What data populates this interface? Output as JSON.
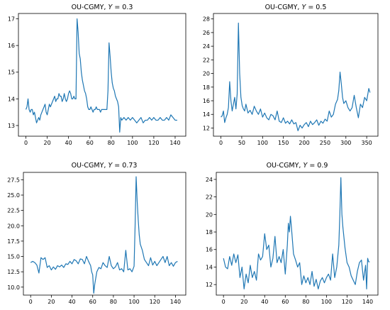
{
  "colors": {
    "line": "#1f77b4"
  },
  "chart_data": [
    {
      "type": "line",
      "title": "OU-CGMY, ",
      "title_param": "Y",
      "title_value": " = 0.3",
      "grid": false,
      "xlim": [
        -7,
        150
      ],
      "ylim": [
        12.6,
        17.2
      ],
      "xticks": [
        0,
        20,
        40,
        60,
        80,
        100,
        120,
        140
      ],
      "yticks": [
        13,
        14,
        15,
        16,
        17
      ],
      "ytick_labels": [
        "13",
        "14",
        "15",
        "16",
        "17"
      ],
      "series": [
        {
          "x": [
            0,
            1,
            2,
            3,
            4,
            5,
            6,
            7,
            8,
            9,
            10,
            11,
            12,
            13,
            14,
            15,
            16,
            17,
            18,
            19,
            20,
            21,
            22,
            23,
            24,
            25,
            26,
            27,
            28,
            29,
            30,
            31,
            32,
            33,
            34,
            35,
            36,
            37,
            38,
            39,
            40,
            41,
            42,
            43,
            44,
            45,
            46,
            47,
            48,
            49,
            50,
            51,
            52,
            53,
            54,
            55,
            56,
            57,
            58,
            59,
            60,
            61,
            62,
            63,
            64,
            65,
            66,
            67,
            68,
            69,
            70,
            71,
            72,
            73,
            74,
            75,
            76,
            77,
            78,
            79,
            80,
            81,
            82,
            83,
            84,
            85,
            86,
            87,
            88,
            89,
            90,
            92,
            94,
            96,
            98,
            100,
            102,
            104,
            106,
            108,
            110,
            112,
            114,
            116,
            118,
            120,
            122,
            124,
            126,
            128,
            130,
            132,
            134,
            136,
            138,
            140,
            142
          ],
          "y": [
            13.6,
            13.7,
            14.0,
            13.6,
            13.5,
            13.6,
            13.6,
            13.4,
            13.5,
            13.3,
            13.1,
            13.2,
            13.3,
            13.2,
            13.4,
            13.5,
            13.6,
            13.7,
            13.8,
            13.5,
            13.4,
            13.6,
            13.8,
            13.7,
            13.8,
            13.9,
            14.0,
            14.1,
            13.9,
            14.0,
            14.0,
            14.2,
            14.1,
            14.1,
            13.9,
            14.0,
            14.2,
            14.0,
            13.9,
            14.0,
            14.2,
            14.3,
            14.2,
            14.0,
            14.0,
            14.1,
            14.0,
            14.0,
            17.0,
            16.5,
            15.7,
            15.5,
            15.0,
            14.7,
            14.5,
            14.3,
            14.2,
            14.0,
            13.7,
            13.6,
            13.6,
            13.7,
            13.6,
            13.5,
            13.6,
            13.6,
            13.7,
            13.6,
            13.6,
            13.6,
            13.5,
            13.6,
            13.6,
            13.6,
            13.6,
            13.6,
            13.6,
            14.3,
            16.1,
            15.6,
            15.0,
            14.6,
            14.4,
            14.3,
            14.1,
            14.0,
            13.9,
            13.7,
            12.75,
            13.3,
            13.2,
            13.3,
            13.2,
            13.3,
            13.2,
            13.3,
            13.2,
            13.1,
            13.2,
            13.3,
            13.1,
            13.2,
            13.2,
            13.3,
            13.2,
            13.3,
            13.2,
            13.2,
            13.3,
            13.2,
            13.2,
            13.3,
            13.2,
            13.4,
            13.3,
            13.2,
            13.2
          ]
        }
      ]
    },
    {
      "type": "line",
      "title": "OU-CGMY, ",
      "title_param": "Y",
      "title_value": " = 0.5",
      "grid": false,
      "xlim": [
        -18,
        377
      ],
      "ylim": [
        10.8,
        28.8
      ],
      "xticks": [
        0,
        50,
        100,
        150,
        200,
        250,
        300,
        350
      ],
      "yticks": [
        12,
        14,
        16,
        18,
        20,
        22,
        24,
        26,
        28
      ],
      "ytick_labels": [
        "12",
        "14",
        "16",
        "18",
        "20",
        "22",
        "24",
        "26",
        "28"
      ],
      "series": [
        {
          "x": [
            0,
            3,
            6,
            9,
            12,
            15,
            18,
            21,
            24,
            27,
            30,
            33,
            36,
            39,
            42,
            45,
            48,
            51,
            54,
            57,
            60,
            65,
            70,
            75,
            80,
            85,
            90,
            95,
            100,
            105,
            110,
            115,
            120,
            125,
            130,
            135,
            140,
            145,
            150,
            155,
            160,
            165,
            170,
            175,
            180,
            185,
            190,
            195,
            200,
            205,
            210,
            215,
            220,
            225,
            230,
            235,
            240,
            245,
            250,
            255,
            260,
            265,
            270,
            275,
            280,
            283,
            286,
            289,
            292,
            295,
            300,
            305,
            310,
            315,
            320,
            325,
            330,
            335,
            340,
            345,
            350,
            355,
            358
          ],
          "y": [
            13.6,
            13.8,
            14.5,
            12.8,
            13.5,
            14.0,
            15.0,
            18.8,
            16.0,
            14.5,
            15.5,
            16.5,
            14.8,
            17.0,
            27.4,
            20.0,
            16.5,
            15.3,
            14.8,
            14.5,
            15.5,
            14.2,
            14.6,
            14.0,
            15.2,
            14.5,
            14.0,
            14.8,
            13.6,
            14.2,
            13.5,
            13.2,
            14.0,
            13.8,
            13.2,
            14.5,
            13.0,
            12.8,
            13.5,
            12.7,
            13.0,
            12.6,
            13.2,
            12.6,
            12.8,
            11.6,
            12.4,
            12.0,
            12.5,
            12.8,
            12.2,
            13.0,
            12.5,
            12.8,
            13.2,
            12.4,
            13.0,
            12.7,
            13.3,
            13.0,
            14.5,
            13.6,
            14.0,
            15.5,
            16.2,
            17.5,
            20.2,
            18.5,
            16.5,
            15.6,
            16.0,
            15.0,
            14.5,
            15.0,
            16.8,
            15.0,
            13.5,
            15.5,
            15.0,
            16.5,
            16.0,
            17.8,
            17.2
          ]
        }
      ]
    },
    {
      "type": "line",
      "title": "OU-CGMY, ",
      "title_param": "Y",
      "title_value": " = 0.73",
      "grid": false,
      "xlim": [
        -7,
        150
      ],
      "ylim": [
        8.7,
        28.7
      ],
      "xticks": [
        0,
        20,
        40,
        60,
        80,
        100,
        120,
        140
      ],
      "yticks": [
        10.0,
        12.5,
        15.0,
        17.5,
        20.0,
        22.5,
        25.0,
        27.5
      ],
      "ytick_labels": [
        "10.0",
        "12.5",
        "15.0",
        "17.5",
        "20.0",
        "22.5",
        "25.0",
        "27.5"
      ],
      "series": [
        {
          "x": [
            0,
            2,
            4,
            6,
            8,
            10,
            12,
            14,
            16,
            18,
            20,
            22,
            24,
            26,
            28,
            30,
            32,
            34,
            36,
            38,
            40,
            42,
            44,
            46,
            48,
            50,
            52,
            54,
            56,
            58,
            59,
            60,
            61,
            62,
            64,
            66,
            68,
            70,
            72,
            74,
            76,
            78,
            80,
            82,
            84,
            86,
            88,
            90,
            92,
            94,
            96,
            98,
            100,
            101,
            102,
            103,
            104,
            105,
            106,
            108,
            110,
            112,
            114,
            116,
            118,
            120,
            122,
            124,
            126,
            128,
            130,
            132,
            134,
            136,
            138,
            140,
            142
          ],
          "y": [
            14.0,
            14.2,
            14.0,
            13.6,
            12.3,
            14.8,
            14.5,
            14.8,
            13.2,
            13.5,
            12.8,
            13.3,
            12.9,
            13.5,
            13.3,
            13.6,
            13.2,
            13.8,
            13.7,
            14.2,
            13.8,
            14.5,
            14.3,
            13.8,
            14.6,
            14.5,
            13.8,
            15.0,
            14.2,
            13.5,
            12.5,
            12.0,
            9.0,
            10.5,
            12.5,
            13.2,
            13.0,
            14.0,
            13.5,
            13.2,
            15.0,
            13.5,
            13.0,
            13.3,
            14.0,
            12.8,
            13.0,
            12.5,
            16.0,
            12.8,
            13.0,
            12.5,
            13.4,
            20.0,
            28.0,
            24.0,
            21.0,
            18.5,
            17.0,
            16.0,
            14.5,
            14.0,
            13.5,
            14.8,
            13.6,
            14.2,
            13.5,
            14.0,
            14.5,
            15.0,
            14.0,
            15.0,
            13.5,
            14.0,
            13.4,
            14.0,
            14.2
          ]
        }
      ]
    },
    {
      "type": "line",
      "title": "OU-CGMY, ",
      "title_param": "Y",
      "title_value": " = 0.9",
      "grid": false,
      "xlim": [
        -7,
        150
      ],
      "ylim": [
        10.8,
        24.8
      ],
      "xticks": [
        0,
        20,
        40,
        60,
        80,
        100,
        120,
        140
      ],
      "yticks": [
        12,
        14,
        16,
        18,
        20,
        22,
        24
      ],
      "ytick_labels": [
        "12",
        "14",
        "16",
        "18",
        "20",
        "22",
        "24"
      ],
      "series": [
        {
          "x": [
            0,
            2,
            4,
            6,
            8,
            10,
            12,
            14,
            16,
            18,
            20,
            22,
            24,
            26,
            28,
            30,
            32,
            34,
            36,
            38,
            40,
            42,
            44,
            46,
            48,
            50,
            52,
            54,
            56,
            58,
            60,
            62,
            63,
            64,
            65,
            66,
            68,
            70,
            72,
            74,
            76,
            78,
            80,
            82,
            84,
            86,
            88,
            90,
            92,
            94,
            96,
            98,
            100,
            102,
            104,
            106,
            108,
            110,
            112,
            113,
            114,
            115,
            116,
            118,
            120,
            122,
            124,
            126,
            128,
            130,
            132,
            134,
            136,
            138,
            139,
            140,
            141,
            142
          ],
          "y": [
            15.0,
            14.0,
            13.8,
            15.2,
            14.2,
            15.5,
            14.5,
            15.4,
            12.8,
            14.0,
            11.5,
            13.2,
            12.2,
            14.2,
            12.8,
            13.5,
            12.5,
            15.5,
            14.8,
            15.2,
            17.8,
            16.0,
            16.5,
            14.0,
            15.0,
            17.5,
            14.5,
            15.2,
            14.5,
            16.0,
            13.2,
            16.5,
            19.0,
            18.0,
            19.8,
            18.5,
            15.5,
            14.8,
            14.0,
            14.5,
            12.0,
            13.0,
            12.2,
            12.8,
            12.0,
            13.5,
            11.8,
            12.6,
            11.5,
            12.4,
            12.8,
            12.2,
            12.8,
            13.2,
            12.5,
            15.5,
            12.8,
            14.0,
            16.5,
            20.0,
            24.2,
            20.0,
            18.5,
            16.2,
            14.5,
            14.0,
            13.0,
            12.5,
            12.0,
            13.5,
            14.5,
            14.8,
            12.5,
            14.2,
            11.5,
            15.0,
            14.6,
            14.6
          ]
        }
      ]
    }
  ]
}
